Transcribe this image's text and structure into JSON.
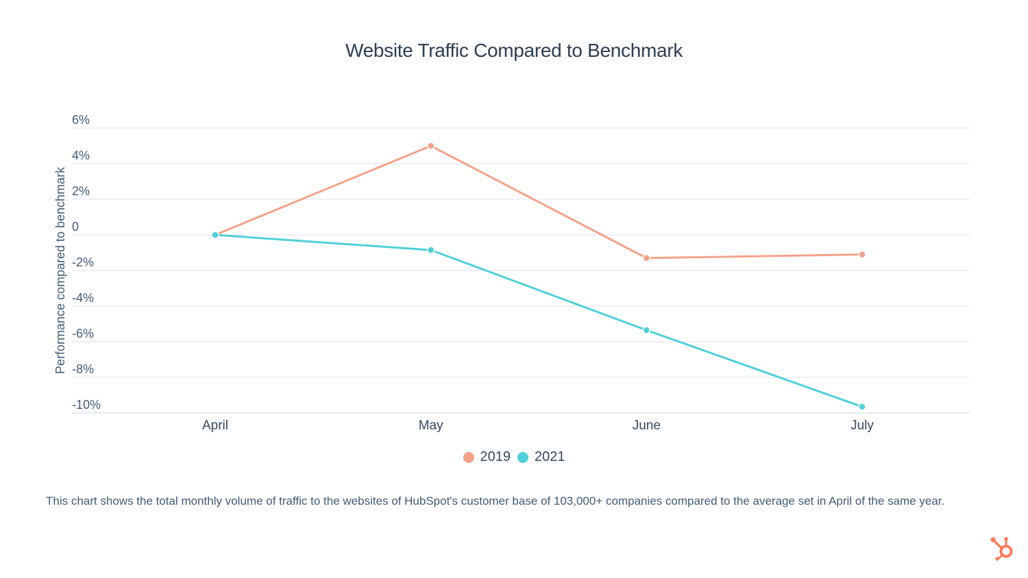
{
  "chart_data": {
    "type": "line",
    "title": "Website Traffic Compared to Benchmark",
    "xlabel": "",
    "ylabel": "Performance compared to benchmark",
    "categories": [
      "April",
      "May",
      "June",
      "July"
    ],
    "series": [
      {
        "name": "2019",
        "color": "#f5a28a",
        "values": [
          0,
          5.0,
          -1.3,
          -1.1
        ]
      },
      {
        "name": "2021",
        "color": "#4fd1d9",
        "values": [
          0,
          -0.85,
          -5.35,
          -9.65
        ]
      }
    ],
    "ylim": [
      -10,
      6
    ],
    "yticks": [
      6,
      4,
      2,
      0,
      -2,
      -4,
      -6,
      -8,
      -10
    ],
    "ytick_labels": [
      "6%",
      "4%",
      "2%",
      "0",
      "-2%",
      "-4%",
      "-6%",
      "-8%",
      "-10%"
    ],
    "grid": true,
    "legend": "bottom-center"
  },
  "caption": "This chart shows the total monthly volume of traffic to the websites of HubSpot's customer base of 103,000+ companies compared to the average set in April of the same year.",
  "logo": {
    "icon": "hubspot-sprocket-icon",
    "color": "#ff7a59"
  }
}
